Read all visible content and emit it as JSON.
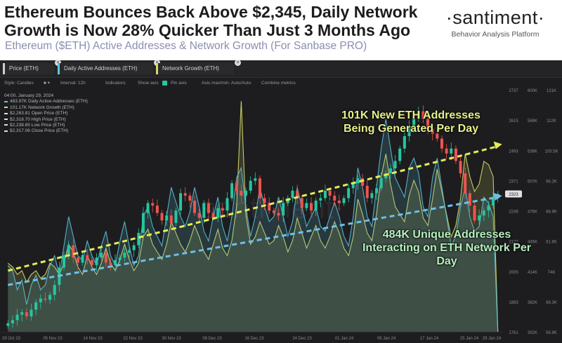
{
  "header": {
    "title": "Ethereum Bounces Back Above $2,345, Daily Network Growth is Now 28% Quicker Than Just 3 Months Ago",
    "subtitle": "Ethereum ($ETH) Active Addresses & Network Growth (For Sanbase PRO)",
    "brand_name": "·santiment·",
    "brand_tagline": "Behavior Analysis Platform"
  },
  "tabs": [
    {
      "label": "Price (ETH)",
      "close": "×"
    },
    {
      "label": "Daily Active Addresses (ETH)",
      "close": "×"
    },
    {
      "label": "Network Growth (ETH)",
      "close": "×"
    }
  ],
  "toolbar": {
    "style": "Style: Candles",
    "interval": "Interval: 12h",
    "indicators": "Indicators:",
    "show_axis": "Show axis",
    "pin_axis": "Pin axis",
    "axis_minmax": "Axis max/min: Auto/Auto",
    "combine": "Combine metrics"
  },
  "legend": {
    "date": "04:00, January 29, 2024",
    "rows": [
      {
        "text": "483.97K Daily Active Addresses (ETH)",
        "color": "#5ec8e0"
      },
      {
        "text": "101.17K Network Growth (ETH)",
        "color": "#d6dc6a"
      },
      {
        "text": "$2,263.81 Open Price (ETH)",
        "color": "#dddddd"
      },
      {
        "text": "$2,318.70 High Price (ETH)",
        "color": "#dddddd"
      },
      {
        "text": "$2,238.65 Low Price (ETH)",
        "color": "#dddddd"
      },
      {
        "text": "$2,317.06 Close Price (ETH)",
        "color": "#dddddd"
      }
    ]
  },
  "annotations": {
    "network_growth": "101K New ETH Addresses Being Generated Per Day",
    "active_addresses": "484K Unique Addresses Interacting on ETH Network Per Day"
  },
  "colors": {
    "background": "#1d1d1f",
    "candle_up": "#26c6a0",
    "candle_down": "#ef5350",
    "active_addresses": "#5ec8e0",
    "network_growth": "#d6dc6a",
    "trend_growth": "#e4ec58",
    "trend_active": "#6cc0e8"
  },
  "chart_data": {
    "type": "line",
    "x_ticks": [
      "29 Oct 23",
      "05 Nov 23",
      "14 Nov 23",
      "22 Nov 23",
      "30 Nov 23",
      "08 Dec 23",
      "16 Dec 23",
      "24 Dec 23",
      "01 Jan 24",
      "09 Jan 24",
      "17 Jan 24",
      "25 Jan 24",
      "29 Jan 24"
    ],
    "price_axis_ticks": [
      1761,
      1883,
      2005,
      2127,
      2249,
      2371,
      2493,
      2615,
      2737
    ],
    "price_axis_highlight": "2323",
    "active_addresses_axis_ticks": [
      "352K",
      "382K",
      "414K",
      "445K",
      "476K",
      "507K",
      "538K",
      "569K",
      "600K"
    ],
    "active_addresses_axis_highlight": "483.97K",
    "network_growth_axis_ticks": [
      "56.8K",
      "68.3K",
      "74K",
      "81.6K",
      "88.9K",
      "96.2K",
      "103.5K",
      "112K",
      "121K"
    ],
    "network_growth_axis_highlight": "101.17K",
    "price_close": [
      1795,
      1808,
      1830,
      1840,
      1823,
      1850,
      1880,
      1895,
      1890,
      1910,
      1950,
      2020,
      2070,
      2110,
      2060,
      2040,
      2070,
      2050,
      2030,
      2060,
      2080,
      2040,
      2030,
      2050,
      2060,
      2080,
      2090,
      2110,
      2160,
      2240,
      2280,
      2270,
      2240,
      2210,
      2230,
      2200,
      2250,
      2320,
      2310,
      2290,
      2240,
      2220,
      2280,
      2240,
      2220,
      2260,
      2250,
      2300,
      2360,
      2330,
      2310,
      2330,
      2370,
      2380,
      2300,
      2280,
      2250,
      2240,
      2230,
      2280,
      2300,
      2330,
      2300,
      2260,
      2280,
      2250,
      2290,
      2300,
      2330,
      2310,
      2290,
      2280,
      2300,
      2340,
      2360,
      2380,
      2350,
      2300,
      2320,
      2340,
      2380,
      2400,
      2420,
      2450,
      2500,
      2550,
      2590,
      2620,
      2650,
      2620,
      2580,
      2560,
      2540,
      2500,
      2480,
      2500,
      2450,
      2400,
      2320,
      2270,
      2210,
      2230,
      2250,
      2270,
      2300,
      2317
    ],
    "active_addresses": [
      420,
      415,
      395,
      405,
      380,
      400,
      410,
      395,
      400,
      420,
      430,
      410,
      440,
      470,
      450,
      430,
      425,
      445,
      430,
      420,
      440,
      455,
      430,
      420,
      445,
      465,
      440,
      420,
      430,
      470,
      480,
      460,
      450,
      440,
      470,
      500,
      485,
      470,
      460,
      475,
      500,
      480,
      455,
      445,
      470,
      490,
      460,
      445,
      470,
      510,
      520,
      480,
      450,
      470,
      500,
      480,
      465,
      470,
      490,
      470,
      450,
      465,
      500,
      480,
      460,
      470,
      480,
      460,
      455,
      470,
      485,
      470,
      450,
      440,
      470,
      520,
      500,
      470,
      460,
      500,
      540,
      570,
      540,
      510,
      500,
      490,
      520,
      530,
      515,
      480,
      470,
      510,
      530,
      500,
      470,
      440,
      450,
      480,
      500,
      470,
      455,
      460,
      490,
      484,
      470,
      352
    ],
    "network_growth": [
      75,
      74,
      72,
      73,
      70,
      72,
      73,
      71,
      72,
      75,
      74,
      72,
      75,
      80,
      78,
      74,
      72,
      77,
      74,
      72,
      75,
      79,
      75,
      73,
      76,
      80,
      76,
      73,
      75,
      82,
      84,
      80,
      78,
      76,
      80,
      86,
      83,
      80,
      78,
      81,
      85,
      82,
      78,
      76,
      80,
      84,
      79,
      77,
      81,
      90,
      118,
      88,
      80,
      82,
      86,
      83,
      80,
      81,
      85,
      82,
      78,
      81,
      87,
      83,
      79,
      82,
      85,
      81,
      79,
      82,
      86,
      83,
      79,
      77,
      82,
      92,
      88,
      83,
      81,
      88,
      98,
      104,
      96,
      90,
      88,
      86,
      93,
      97,
      94,
      87,
      85,
      92,
      100,
      94,
      88,
      82,
      85,
      92,
      104,
      98,
      94,
      96,
      102,
      101.17,
      98,
      56.8
    ],
    "trendlines": [
      {
        "label": "Network Growth trend",
        "from": [
          0,
          73
        ],
        "to": [
          105,
          106
        ]
      },
      {
        "label": "Active Addresses trend",
        "from": [
          0,
          400
        ],
        "to": [
          105,
          490
        ]
      }
    ]
  }
}
